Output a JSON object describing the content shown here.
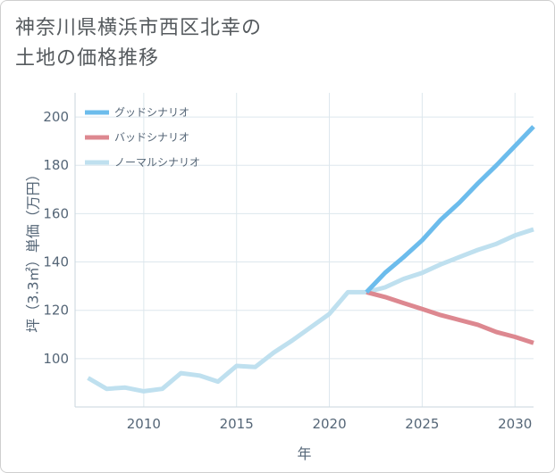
{
  "title_lines": [
    "神奈川県横浜市西区北幸の",
    "土地の価格推移"
  ],
  "chart_data": {
    "type": "line",
    "title": "神奈川県横浜市西区北幸の土地の価格推移",
    "xlabel": "年",
    "ylabel": "坪（3.3㎡）単価（万円）",
    "xlim": [
      2006.3,
      2031
    ],
    "ylim": [
      80,
      210
    ],
    "xticks": [
      2010,
      2015,
      2020,
      2025,
      2030
    ],
    "yticks": [
      100,
      120,
      140,
      160,
      180,
      200
    ],
    "grid": true,
    "legend_position": "top-left",
    "series": [
      {
        "name": "グッドシナリオ",
        "color": "#6cbcec",
        "x": [
          2022,
          2023,
          2024,
          2025,
          2026,
          2027,
          2028,
          2029,
          2030,
          2031
        ],
        "y": [
          127.5,
          135.5,
          142,
          149,
          157.5,
          164.5,
          172.5,
          180,
          188,
          196
        ]
      },
      {
        "name": "バッドシナリオ",
        "color": "#dd8890",
        "x": [
          2022,
          2023,
          2024,
          2025,
          2026,
          2027,
          2028,
          2029,
          2030,
          2031
        ],
        "y": [
          127.5,
          125.5,
          123,
          120.5,
          118,
          116,
          114,
          111,
          109,
          106.5
        ]
      },
      {
        "name": "ノーマルシナリオ",
        "color": "#bfe0ef",
        "x": [
          2007,
          2008,
          2009,
          2010,
          2011,
          2012,
          2013,
          2014,
          2015,
          2016,
          2017,
          2018,
          2019,
          2020,
          2021,
          2022,
          2023,
          2024,
          2025,
          2026,
          2027,
          2028,
          2029,
          2030,
          2031
        ],
        "y": [
          92,
          87.5,
          88,
          86.5,
          87.5,
          94,
          93,
          90.5,
          97,
          96.5,
          102.5,
          107.5,
          113,
          118.5,
          127.5,
          127.5,
          129.5,
          133,
          135.5,
          139,
          142,
          145,
          147.5,
          151,
          153.5
        ]
      }
    ]
  }
}
